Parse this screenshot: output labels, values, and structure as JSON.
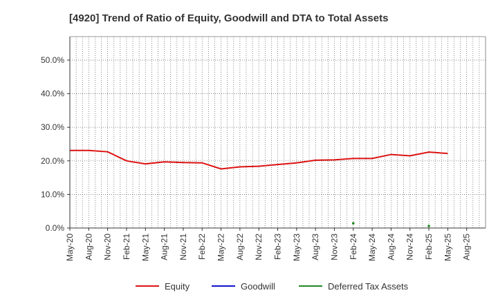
{
  "chart_data": {
    "type": "line",
    "title": "[4920]  Trend of Ratio of Equity, Goodwill and DTA to Total Assets",
    "xlabel": "",
    "ylabel": "",
    "ylim": [
      0,
      0.57
    ],
    "y_ticks": [
      0,
      0.1,
      0.2,
      0.3,
      0.4,
      0.5
    ],
    "y_tick_labels": [
      "0.0%",
      "10.0%",
      "20.0%",
      "30.0%",
      "40.0%",
      "50.0%"
    ],
    "grid": true,
    "legend_position": "bottom",
    "x_tick_labels": [
      "May-20",
      "Aug-20",
      "Nov-20",
      "Feb-21",
      "May-21",
      "Aug-21",
      "Nov-21",
      "Feb-22",
      "May-22",
      "Aug-22",
      "Nov-22",
      "Feb-23",
      "May-23",
      "Aug-23",
      "Nov-23",
      "Feb-24",
      "May-24",
      "Aug-24",
      "Nov-24",
      "Feb-25",
      "May-25",
      "Aug-25"
    ],
    "x": [
      "May-20",
      "Aug-20",
      "Nov-20",
      "Feb-21",
      "May-21",
      "Aug-21",
      "Nov-21",
      "Feb-22",
      "May-22",
      "Aug-22",
      "Nov-22",
      "Feb-23",
      "May-23",
      "Aug-23",
      "Nov-23",
      "Feb-24",
      "May-24",
      "Aug-24",
      "Nov-24",
      "Feb-25",
      "May-25"
    ],
    "series": [
      {
        "name": "Equity",
        "color": "#dd1111",
        "style": "line",
        "values": [
          0.231,
          0.231,
          0.227,
          0.2,
          0.191,
          0.197,
          0.195,
          0.194,
          0.176,
          0.182,
          0.184,
          0.189,
          0.194,
          0.202,
          0.203,
          0.207,
          0.207,
          0.219,
          0.215,
          0.226,
          0.222
        ]
      },
      {
        "name": "Goodwill",
        "color": "#1111cc",
        "style": "line",
        "values": [
          null,
          null,
          null,
          null,
          null,
          null,
          null,
          null,
          null,
          null,
          null,
          null,
          null,
          null,
          null,
          null,
          null,
          null,
          null,
          null,
          null
        ]
      },
      {
        "name": "Deferred Tax Assets",
        "color": "#228822",
        "style": "points",
        "values": [
          null,
          null,
          null,
          null,
          null,
          null,
          null,
          null,
          null,
          null,
          null,
          null,
          null,
          null,
          null,
          0.014,
          null,
          null,
          null,
          0.006,
          null
        ]
      }
    ]
  }
}
